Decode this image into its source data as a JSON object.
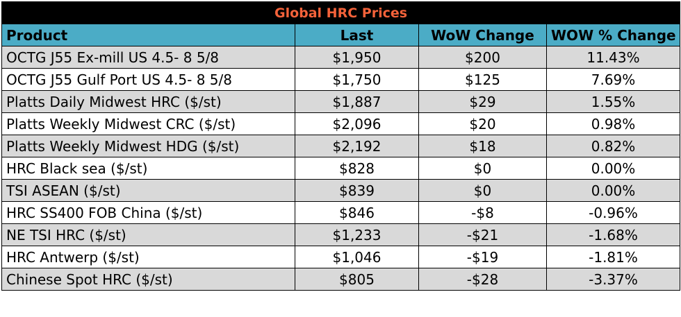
{
  "chart_data": {
    "type": "table",
    "title": "Global HRC Prices",
    "columns": [
      "Product",
      "Last",
      "WoW Change",
      "WOW % Change"
    ],
    "rows": [
      [
        "OCTG J55 Ex-mill US 4.5- 8 5/8",
        "$1,950",
        "$200",
        "11.43%"
      ],
      [
        "OCTG J55 Gulf Port US 4.5- 8 5/8",
        "$1,750",
        "$125",
        "7.69%"
      ],
      [
        "Platts Daily Midwest HRC ($/st)",
        "$1,887",
        "$29",
        "1.55%"
      ],
      [
        "Platts Weekly Midwest CRC ($/st)",
        "$2,096",
        "$20",
        "0.98%"
      ],
      [
        "Platts Weekly Midwest HDG ($/st)",
        "$2,192",
        "$18",
        "0.82%"
      ],
      [
        "HRC Black sea ($/st)",
        "$828",
        "$0",
        "0.00%"
      ],
      [
        "TSI ASEAN ($/st)",
        "$839",
        "$0",
        "0.00%"
      ],
      [
        "HRC SS400 FOB China ($/st)",
        "$846",
        "-$8",
        "-0.96%"
      ],
      [
        "NE TSI HRC ($/st)",
        "$1,233",
        "-$21",
        "-1.68%"
      ],
      [
        "HRC Antwerp ($/st)",
        "$1,046",
        "-$19",
        "-1.81%"
      ],
      [
        "Chinese Spot HRC ($/st)",
        "$805",
        "-$28",
        "-3.37%"
      ]
    ]
  },
  "colors": {
    "title_background": "#000000",
    "title_text": "#f4623a",
    "header_background": "#4bacc6",
    "row_shade": "#d9d9d9",
    "row_plain": "#ffffff"
  }
}
